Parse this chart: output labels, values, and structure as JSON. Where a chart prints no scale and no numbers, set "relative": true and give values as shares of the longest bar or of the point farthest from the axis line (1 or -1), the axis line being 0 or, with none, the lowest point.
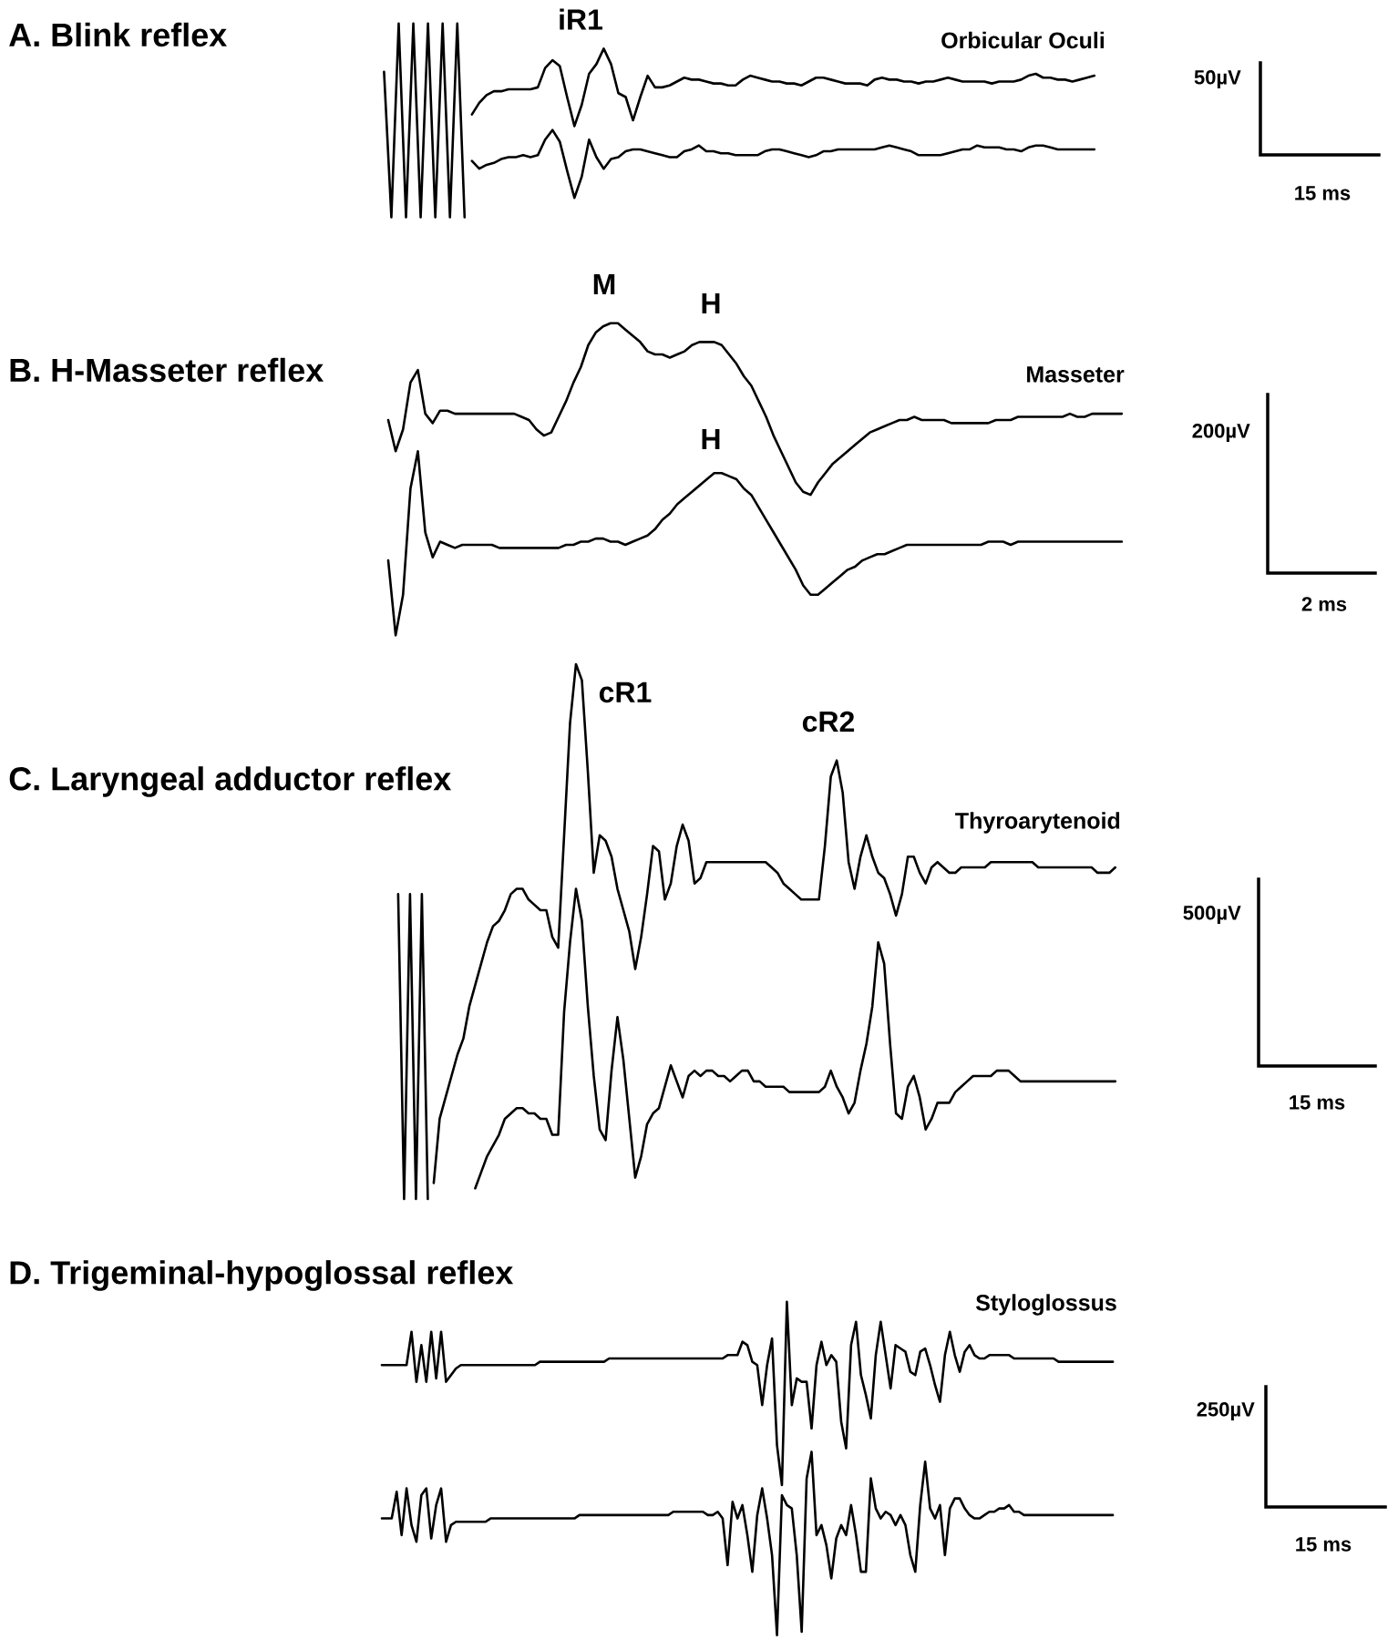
{
  "chart_data": [
    {
      "type": "line",
      "title": "A. Blink reflex",
      "relative": true,
      "categories": [
        null,
        null,
        null,
        null,
        null,
        null,
        null,
        null,
        null,
        null,
        null,
        null,
        null,
        null,
        null,
        null,
        null,
        null,
        null,
        null,
        null,
        null,
        null,
        null,
        null,
        null,
        null,
        null,
        null,
        null,
        null,
        null,
        null,
        null,
        null,
        null,
        null,
        null,
        null,
        null,
        null,
        null,
        null,
        null,
        null,
        null,
        null,
        null,
        null,
        null,
        null,
        null,
        null,
        null,
        null,
        null,
        null,
        null,
        null,
        null,
        null,
        null,
        null,
        null,
        null,
        null,
        null,
        null,
        null,
        null,
        null,
        null,
        null,
        null,
        null,
        null,
        null,
        null,
        null,
        null,
        null,
        null,
        null,
        null,
        null,
        null,
        null,
        null,
        null,
        null,
        null,
        null,
        null,
        null,
        null,
        null,
        null,
        null
      ],
      "series": [
        {
          "color": "#000000",
          "values": [
            0.75,
            0,
            1,
            0,
            1,
            0,
            1,
            0,
            1,
            0,
            1,
            0,
            null,
            null,
            null,
            null,
            null,
            null,
            null,
            null,
            null,
            null,
            null,
            null,
            null,
            null,
            null,
            null,
            null,
            null,
            null,
            null,
            null,
            null,
            null,
            null,
            null,
            null,
            null,
            null,
            null,
            null,
            null,
            null,
            null,
            null,
            null,
            null,
            null,
            null,
            null,
            null,
            null,
            null,
            null,
            null,
            null,
            null,
            null,
            null,
            null,
            null,
            null,
            null,
            null,
            null,
            null,
            null,
            null,
            null,
            null,
            null,
            null,
            null,
            null,
            null,
            null,
            null,
            null,
            null,
            null,
            null,
            null,
            null,
            null,
            null,
            null,
            null,
            null,
            null,
            null,
            null,
            null,
            null,
            null,
            null,
            null,
            null
          ]
        },
        {
          "color": "#000000",
          "values": [
            null,
            null,
            null,
            null,
            null,
            null,
            null,
            null,
            null,
            null,
            null,
            null,
            0.53,
            0.59,
            0.63,
            0.65,
            0.65,
            0.66,
            0.66,
            0.66,
            0.66,
            0.67,
            0.77,
            0.81,
            0.78,
            0.62,
            0.47,
            0.58,
            0.74,
            0.79,
            0.87,
            0.79,
            0.64,
            0.62,
            0.5,
            0.62,
            0.73,
            0.67,
            0.67,
            0.68,
            0.7,
            0.72,
            0.71,
            0.71,
            0.7,
            0.69,
            0.69,
            0.68,
            0.68,
            0.71,
            0.73,
            0.72,
            0.71,
            0.7,
            0.7,
            0.69,
            0.69,
            0.68,
            0.7,
            0.72,
            0.72,
            0.71,
            0.7,
            0.69,
            0.69,
            0.69,
            0.68,
            0.71,
            0.72,
            0.71,
            0.71,
            0.7,
            0.7,
            0.69,
            0.7,
            0.7,
            0.71,
            0.72,
            0.71,
            0.7,
            0.7,
            0.7,
            0.7,
            0.69,
            0.7,
            0.7,
            0.7,
            0.71,
            0.73,
            0.74,
            0.72,
            0.72,
            0.71,
            0.71,
            0.7,
            0.71,
            0.72,
            0.73
          ]
        },
        {
          "color": "#000000",
          "values": [
            null,
            null,
            null,
            null,
            null,
            null,
            null,
            null,
            null,
            null,
            null,
            null,
            0.29,
            0.25,
            0.27,
            0.28,
            0.3,
            0.31,
            0.31,
            0.32,
            0.31,
            0.32,
            0.4,
            0.45,
            0.39,
            0.24,
            0.1,
            0.21,
            0.4,
            0.31,
            0.25,
            0.3,
            0.31,
            0.34,
            0.35,
            0.35,
            0.34,
            0.33,
            0.32,
            0.31,
            0.31,
            0.34,
            0.35,
            0.37,
            0.34,
            0.34,
            0.33,
            0.33,
            0.32,
            0.32,
            0.32,
            0.32,
            0.34,
            0.35,
            0.35,
            0.34,
            0.33,
            0.32,
            0.31,
            0.32,
            0.34,
            0.34,
            0.35,
            0.35,
            0.35,
            0.35,
            0.35,
            0.35,
            0.36,
            0.37,
            0.36,
            0.35,
            0.34,
            0.32,
            0.32,
            0.32,
            0.32,
            0.33,
            0.34,
            0.35,
            0.35,
            0.37,
            0.36,
            0.36,
            0.36,
            0.35,
            0.35,
            0.34,
            0.36,
            0.37,
            0.37,
            0.36,
            0.35,
            0.35,
            0.35,
            0.35,
            0.35,
            0.35
          ]
        }
      ],
      "annotations": [
        "iR1",
        "Orbicular Oculi",
        "50µV",
        "15 ms"
      ]
    },
    {
      "type": "line",
      "title": "B. H-Masseter reflex",
      "relative": true,
      "categories": [
        null,
        null,
        null,
        null,
        null,
        null,
        null,
        null,
        null,
        null,
        null,
        null,
        null,
        null,
        null,
        null,
        null,
        null,
        null,
        null,
        null,
        null,
        null,
        null,
        null,
        null,
        null,
        null,
        null,
        null,
        null,
        null,
        null,
        null,
        null,
        null,
        null,
        null,
        null,
        null,
        null,
        null,
        null,
        null,
        null,
        null,
        null,
        null,
        null,
        null,
        null,
        null,
        null,
        null,
        null,
        null,
        null,
        null,
        null,
        null,
        null,
        null,
        null,
        null,
        null,
        null,
        null,
        null,
        null,
        null,
        null,
        null,
        null,
        null,
        null,
        null,
        null,
        null,
        null,
        null,
        null,
        null,
        null,
        null,
        null,
        null,
        null,
        null,
        null,
        null,
        null,
        null,
        null,
        null,
        null,
        null,
        null,
        null,
        null,
        null
      ],
      "series": [
        {
          "color": "#000000",
          "values": [
            0.69,
            0.59,
            0.66,
            0.81,
            0.85,
            0.71,
            0.68,
            0.72,
            0.72,
            0.71,
            0.71,
            0.71,
            0.71,
            0.71,
            0.71,
            0.71,
            0.71,
            0.71,
            0.7,
            0.69,
            0.66,
            0.64,
            0.65,
            0.7,
            0.75,
            0.81,
            0.86,
            0.93,
            0.97,
            0.99,
            1.0,
            1.0,
            0.98,
            0.96,
            0.94,
            0.91,
            0.9,
            0.9,
            0.89,
            0.9,
            0.91,
            0.93,
            0.94,
            0.94,
            0.94,
            0.93,
            0.9,
            0.87,
            0.83,
            0.8,
            0.75,
            0.7,
            0.64,
            0.59,
            0.54,
            0.49,
            0.46,
            0.45,
            0.49,
            0.52,
            0.55,
            0.57,
            0.59,
            0.61,
            0.63,
            0.65,
            0.66,
            0.67,
            0.68,
            0.69,
            0.69,
            0.7,
            0.69,
            0.69,
            0.69,
            0.69,
            0.68,
            0.68,
            0.68,
            0.68,
            0.68,
            0.68,
            0.69,
            0.69,
            0.69,
            0.7,
            0.7,
            0.7,
            0.7,
            0.7,
            0.7,
            0.7,
            0.71,
            0.7,
            0.7,
            0.71,
            0.71,
            0.71,
            0.71,
            0.71
          ]
        },
        {
          "color": "#000000",
          "values": [
            0.24,
            0.0,
            0.13,
            0.47,
            0.59,
            0.33,
            0.25,
            0.3,
            0.29,
            0.28,
            0.29,
            0.29,
            0.29,
            0.29,
            0.29,
            0.28,
            0.28,
            0.28,
            0.28,
            0.28,
            0.28,
            0.28,
            0.28,
            0.28,
            0.29,
            0.29,
            0.3,
            0.3,
            0.31,
            0.31,
            0.3,
            0.3,
            0.29,
            0.3,
            0.31,
            0.32,
            0.34,
            0.37,
            0.39,
            0.42,
            0.44,
            0.46,
            0.48,
            0.5,
            0.52,
            0.52,
            0.51,
            0.5,
            0.47,
            0.45,
            0.41,
            0.37,
            0.33,
            0.29,
            0.25,
            0.21,
            0.16,
            0.13,
            0.13,
            0.15,
            0.17,
            0.19,
            0.21,
            0.22,
            0.24,
            0.25,
            0.26,
            0.26,
            0.27,
            0.28,
            0.29,
            0.29,
            0.29,
            0.29,
            0.29,
            0.29,
            0.29,
            0.29,
            0.29,
            0.29,
            0.29,
            0.3,
            0.3,
            0.3,
            0.29,
            0.3,
            0.3,
            0.3,
            0.3,
            0.3,
            0.3,
            0.3,
            0.3,
            0.3,
            0.3,
            0.3,
            0.3,
            0.3,
            0.3,
            0.3
          ]
        }
      ],
      "annotations": [
        "M",
        "H",
        "H",
        "Masseter",
        "200µV",
        "2 ms"
      ]
    },
    {
      "type": "line",
      "title": "C. Laryngeal adductor reflex",
      "relative": true,
      "categories": [
        null,
        null,
        null,
        null,
        null,
        null,
        null,
        null,
        null,
        null,
        null,
        null,
        null,
        null,
        null,
        null,
        null,
        null,
        null,
        null,
        null,
        null,
        null,
        null,
        null,
        null,
        null,
        null,
        null,
        null,
        null,
        null,
        null,
        null,
        null,
        null,
        null,
        null,
        null,
        null,
        null,
        null,
        null,
        null,
        null,
        null,
        null,
        null,
        null,
        null,
        null,
        null,
        null,
        null,
        null,
        null,
        null,
        null,
        null,
        null,
        null,
        null,
        null,
        null,
        null,
        null,
        null,
        null,
        null,
        null,
        null,
        null,
        null,
        null,
        null,
        null,
        null,
        null,
        null,
        null,
        null,
        null,
        null,
        null,
        null,
        null,
        null,
        null,
        null,
        null,
        null,
        null,
        null,
        null,
        null,
        null,
        null,
        null,
        null,
        null,
        null,
        null,
        null,
        null,
        null,
        null,
        null,
        null,
        null,
        null,
        null,
        null,
        null,
        null,
        null,
        null,
        null,
        null,
        null,
        null,
        null,
        null
      ],
      "series": [
        {
          "color": "#000000",
          "values": [
            0.57,
            0,
            0.57,
            0,
            0.57,
            0,
            null,
            null,
            null,
            null,
            null,
            null,
            null,
            null,
            null,
            null,
            null,
            null,
            null,
            null,
            null,
            null,
            null,
            null,
            null,
            null,
            null,
            null,
            null,
            null,
            null,
            null,
            null,
            null,
            null,
            null,
            null,
            null,
            null,
            null,
            null,
            null,
            null,
            null,
            null,
            null,
            null,
            null,
            null,
            null,
            null,
            null,
            null,
            null,
            null,
            null,
            null,
            null,
            null,
            null,
            null,
            null,
            null,
            null,
            null,
            null,
            null,
            null,
            null,
            null,
            null,
            null,
            null,
            null,
            null,
            null,
            null,
            null,
            null,
            null,
            null,
            null,
            null,
            null,
            null,
            null,
            null,
            null,
            null,
            null,
            null,
            null,
            null,
            null,
            null,
            null,
            null,
            null,
            null,
            null,
            null,
            null,
            null,
            null,
            null,
            null,
            null,
            null,
            null,
            null,
            null,
            null,
            null,
            null,
            null,
            null,
            null,
            null,
            null,
            null,
            null,
            null
          ]
        },
        {
          "color": "#000000",
          "values": [
            null,
            null,
            null,
            null,
            null,
            null,
            0.03,
            0.15,
            0.19,
            0.23,
            0.27,
            0.3,
            0.36,
            0.4,
            0.44,
            0.48,
            0.51,
            0.52,
            0.54,
            0.57,
            0.58,
            0.58,
            0.56,
            0.55,
            0.54,
            0.54,
            0.49,
            0.47,
            0.68,
            0.89,
            1.0,
            0.97,
            0.8,
            0.61,
            0.68,
            0.67,
            0.64,
            0.58,
            0.54,
            0.5,
            0.43,
            0.49,
            0.57,
            0.66,
            0.65,
            0.56,
            0.59,
            0.66,
            0.7,
            0.67,
            0.59,
            0.6,
            0.63,
            0.63,
            0.63,
            0.63,
            0.63,
            0.63,
            0.63,
            0.63,
            0.63,
            0.63,
            0.63,
            0.62,
            0.61,
            0.59,
            0.58,
            0.57,
            0.56,
            0.56,
            0.56,
            0.56,
            0.66,
            0.79,
            0.82,
            0.76,
            0.63,
            0.58,
            0.64,
            0.68,
            0.64,
            0.61,
            0.6,
            0.57,
            0.53,
            0.57,
            0.64,
            0.64,
            0.61,
            0.59,
            0.62,
            0.63,
            0.62,
            0.61,
            0.61,
            0.62,
            0.62,
            0.62,
            0.62,
            0.62,
            0.63,
            0.63,
            0.63,
            0.63,
            0.63,
            0.63,
            0.63,
            0.63,
            0.62,
            0.62,
            0.62,
            0.62,
            0.62,
            0.62,
            0.62,
            0.62,
            0.62,
            0.62,
            0.61,
            0.61,
            0.61,
            0.62
          ]
        },
        {
          "color": "#000000",
          "values": [
            null,
            null,
            null,
            null,
            null,
            null,
            null,
            null,
            null,
            null,
            null,
            null,
            null,
            0.02,
            0.05,
            0.08,
            0.1,
            0.12,
            0.15,
            0.16,
            0.17,
            0.17,
            0.16,
            0.16,
            0.15,
            0.15,
            0.12,
            0.12,
            0.35,
            0.48,
            0.58,
            0.52,
            0.36,
            0.23,
            0.13,
            0.11,
            0.24,
            0.34,
            0.26,
            0.15,
            0.04,
            0.08,
            0.14,
            0.16,
            0.17,
            0.21,
            0.25,
            0.22,
            0.19,
            0.23,
            0.24,
            0.23,
            0.24,
            0.24,
            0.23,
            0.23,
            0.22,
            0.23,
            0.24,
            0.24,
            0.22,
            0.22,
            0.21,
            0.21,
            0.21,
            0.21,
            0.2,
            0.2,
            0.2,
            0.2,
            0.2,
            0.2,
            0.21,
            0.24,
            0.21,
            0.19,
            0.16,
            0.18,
            0.24,
            0.29,
            0.36,
            0.48,
            0.44,
            0.29,
            0.16,
            0.15,
            0.21,
            0.23,
            0.19,
            0.13,
            0.15,
            0.18,
            0.18,
            0.18,
            0.2,
            0.21,
            0.22,
            0.23,
            0.23,
            0.23,
            0.23,
            0.24,
            0.24,
            0.24,
            0.23,
            0.22,
            0.22,
            0.22,
            0.22,
            0.22,
            0.22,
            0.22,
            0.22,
            0.22,
            0.22,
            0.22,
            0.22,
            0.22,
            0.22,
            0.22,
            0.22,
            0.22
          ]
        }
      ],
      "annotations": [
        "cR1",
        "cR2",
        "Thyroarytenoid",
        "500µV",
        "15 ms"
      ]
    },
    {
      "type": "line",
      "title": "D. Trigeminal-hypoglossal reflex",
      "relative": true,
      "categories": [
        null,
        null,
        null,
        null,
        null,
        null,
        null,
        null,
        null,
        null,
        null,
        null,
        null,
        null,
        null,
        null,
        null,
        null,
        null,
        null,
        null,
        null,
        null,
        null,
        null,
        null,
        null,
        null,
        null,
        null,
        null,
        null,
        null,
        null,
        null,
        null,
        null,
        null,
        null,
        null,
        null,
        null,
        null,
        null,
        null,
        null,
        null,
        null,
        null,
        null,
        null,
        null,
        null,
        null,
        null,
        null,
        null,
        null,
        null,
        null,
        null,
        null,
        null,
        null,
        null,
        null,
        null,
        null,
        null,
        null,
        null,
        null,
        null,
        null,
        null,
        null,
        null,
        null,
        null,
        null,
        null,
        null,
        null,
        null,
        null,
        null,
        null,
        null,
        null,
        null,
        null,
        null,
        null,
        null,
        null,
        null,
        null,
        null,
        null,
        null,
        null,
        null,
        null,
        null,
        null,
        null,
        null,
        null,
        null,
        null,
        null,
        null,
        null,
        null,
        null,
        null,
        null,
        null,
        null,
        null,
        null,
        null,
        null,
        null,
        null,
        null,
        null,
        null,
        null,
        null,
        null,
        null,
        null,
        null,
        null,
        null,
        null,
        null,
        null,
        null,
        null,
        null,
        null,
        null,
        null,
        null,
        null,
        null,
        null
      ],
      "series": [
        {
          "color": "#000000",
          "values": [
            0.81,
            0.81,
            0.81,
            0.81,
            0.81,
            0.81,
            0.91,
            0.76,
            0.87,
            0.76,
            0.91,
            0.77,
            0.91,
            0.76,
            0.78,
            0.8,
            0.81,
            0.81,
            0.81,
            0.81,
            0.81,
            0.81,
            0.81,
            0.81,
            0.81,
            0.81,
            0.81,
            0.81,
            0.81,
            0.81,
            0.81,
            0.81,
            0.82,
            0.82,
            0.82,
            0.82,
            0.82,
            0.82,
            0.82,
            0.82,
            0.82,
            0.82,
            0.82,
            0.82,
            0.82,
            0.82,
            0.83,
            0.83,
            0.83,
            0.83,
            0.83,
            0.83,
            0.83,
            0.83,
            0.83,
            0.83,
            0.83,
            0.83,
            0.83,
            0.83,
            0.83,
            0.83,
            0.83,
            0.83,
            0.83,
            0.83,
            0.83,
            0.83,
            0.83,
            0.83,
            0.84,
            0.84,
            0.84,
            0.88,
            0.87,
            0.82,
            0.81,
            0.69,
            0.81,
            0.89,
            0.57,
            0.45,
            1.0,
            0.69,
            0.77,
            0.76,
            0.76,
            0.62,
            0.81,
            0.88,
            0.81,
            0.84,
            0.82,
            0.64,
            0.56,
            0.87,
            0.94,
            0.78,
            0.72,
            0.65,
            0.84,
            0.94,
            0.84,
            0.74,
            0.87,
            0.86,
            0.85,
            0.79,
            0.78,
            0.85,
            0.86,
            0.81,
            0.75,
            0.7,
            0.84,
            0.91,
            0.84,
            0.79,
            0.85,
            0.87,
            0.84,
            0.83,
            0.83,
            0.84,
            0.84,
            0.84,
            0.84,
            0.84,
            0.83,
            0.83,
            0.83,
            0.83,
            0.83,
            0.83,
            0.83,
            0.83,
            0.83,
            0.82,
            0.82,
            0.82,
            0.82,
            0.82,
            0.82,
            0.82,
            0.82,
            0.82,
            0.82,
            0.82,
            0.82
          ]
        },
        {
          "color": "#000000",
          "values": [
            0.35,
            0.35,
            0.35,
            0.43,
            0.3,
            0.44,
            0.33,
            0.28,
            0.42,
            0.44,
            0.29,
            0.39,
            0.44,
            0.28,
            0.33,
            0.34,
            0.34,
            0.34,
            0.34,
            0.34,
            0.34,
            0.34,
            0.35,
            0.35,
            0.35,
            0.35,
            0.35,
            0.35,
            0.35,
            0.35,
            0.35,
            0.35,
            0.35,
            0.35,
            0.35,
            0.35,
            0.35,
            0.35,
            0.35,
            0.35,
            0.36,
            0.36,
            0.36,
            0.36,
            0.36,
            0.36,
            0.36,
            0.36,
            0.36,
            0.36,
            0.36,
            0.36,
            0.36,
            0.36,
            0.36,
            0.36,
            0.36,
            0.36,
            0.36,
            0.37,
            0.37,
            0.37,
            0.37,
            0.37,
            0.37,
            0.37,
            0.36,
            0.36,
            0.37,
            0.35,
            0.21,
            0.4,
            0.35,
            0.39,
            0.3,
            0.19,
            0.36,
            0.44,
            0.35,
            0.24,
            0.0,
            0.42,
            0.39,
            0.38,
            0.24,
            0.01,
            0.47,
            0.55,
            0.3,
            0.33,
            0.27,
            0.17,
            0.29,
            0.33,
            0.3,
            0.39,
            0.3,
            0.19,
            0.19,
            0.47,
            0.38,
            0.35,
            0.37,
            0.36,
            0.33,
            0.36,
            0.33,
            0.24,
            0.19,
            0.39,
            0.52,
            0.38,
            0.35,
            0.39,
            0.24,
            0.38,
            0.41,
            0.41,
            0.38,
            0.36,
            0.35,
            0.35,
            0.36,
            0.37,
            0.37,
            0.38,
            0.38,
            0.39,
            0.37,
            0.37,
            0.36,
            0.36,
            0.36,
            0.36,
            0.36,
            0.36,
            0.36,
            0.36,
            0.36,
            0.36,
            0.36,
            0.36,
            0.36,
            0.36,
            0.36,
            0.36,
            0.36,
            0.36,
            0.36
          ]
        }
      ],
      "annotations": [
        "Styloglossus",
        "250µV",
        "15 ms"
      ]
    }
  ]
}
